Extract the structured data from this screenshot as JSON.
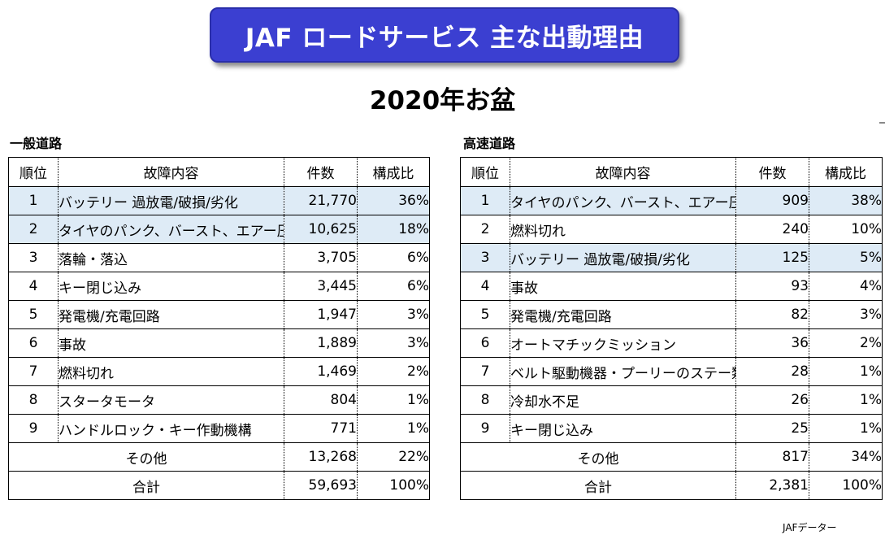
{
  "title": "JAF ロードサービス 主な出動理由",
  "subtitle": "2020年お盆",
  "source": "JAFデーター",
  "highlight_color": "#deebf6",
  "banner_color": "#3b3fd1",
  "tables": [
    {
      "label": "一般道路",
      "headers": [
        "順位",
        "故障内容",
        "件数",
        "構成比"
      ],
      "rows": [
        {
          "rank": "1",
          "item": "バッテリー 過放電/破損/劣化",
          "count": "21,770",
          "pct": "36%"
        },
        {
          "rank": "2",
          "item": "タイヤのパンク、バースト、エアー圧不足",
          "count": "10,625",
          "pct": "18%"
        },
        {
          "rank": "3",
          "item": "落輪・落込",
          "count": "3,705",
          "pct": "6%"
        },
        {
          "rank": "4",
          "item": "キー閉じ込み",
          "count": "3,445",
          "pct": "6%"
        },
        {
          "rank": "5",
          "item": "発電機/充電回路",
          "count": "1,947",
          "pct": "3%"
        },
        {
          "rank": "6",
          "item": "事故",
          "count": "1,889",
          "pct": "3%"
        },
        {
          "rank": "7",
          "item": "燃料切れ",
          "count": "1,469",
          "pct": "2%"
        },
        {
          "rank": "8",
          "item": "スタータモータ",
          "count": "804",
          "pct": "1%"
        },
        {
          "rank": "9",
          "item": "ハンドルロック・キー作動機構",
          "count": "771",
          "pct": "1%"
        }
      ],
      "other": {
        "label": "その他",
        "count": "13,268",
        "pct": "22%"
      },
      "total": {
        "label": "合計",
        "count": "59,693",
        "pct": "100%"
      }
    },
    {
      "label": "高速道路",
      "headers": [
        "順位",
        "故障内容",
        "件数",
        "構成比"
      ],
      "rows": [
        {
          "rank": "1",
          "item": "タイヤのパンク、バースト、エアー圧不足",
          "count": "909",
          "pct": "38%"
        },
        {
          "rank": "2",
          "item": "燃料切れ",
          "count": "240",
          "pct": "10%"
        },
        {
          "rank": "3",
          "item": "バッテリー 過放電/破損/劣化",
          "count": "125",
          "pct": "5%"
        },
        {
          "rank": "4",
          "item": "事故",
          "count": "93",
          "pct": "4%"
        },
        {
          "rank": "5",
          "item": "発電機/充電回路",
          "count": "82",
          "pct": "3%"
        },
        {
          "rank": "6",
          "item": "オートマチックミッション",
          "count": "36",
          "pct": "2%"
        },
        {
          "rank": "7",
          "item": "ベルト駆動機器・プーリーのステー類",
          "count": "28",
          "pct": "1%"
        },
        {
          "rank": "8",
          "item": "冷却水不足",
          "count": "26",
          "pct": "1%"
        },
        {
          "rank": "9",
          "item": "キー閉じ込み",
          "count": "25",
          "pct": "1%"
        }
      ],
      "other": {
        "label": "その他",
        "count": "817",
        "pct": "34%"
      },
      "total": {
        "label": "合計",
        "count": "2,381",
        "pct": "100%"
      }
    }
  ]
}
